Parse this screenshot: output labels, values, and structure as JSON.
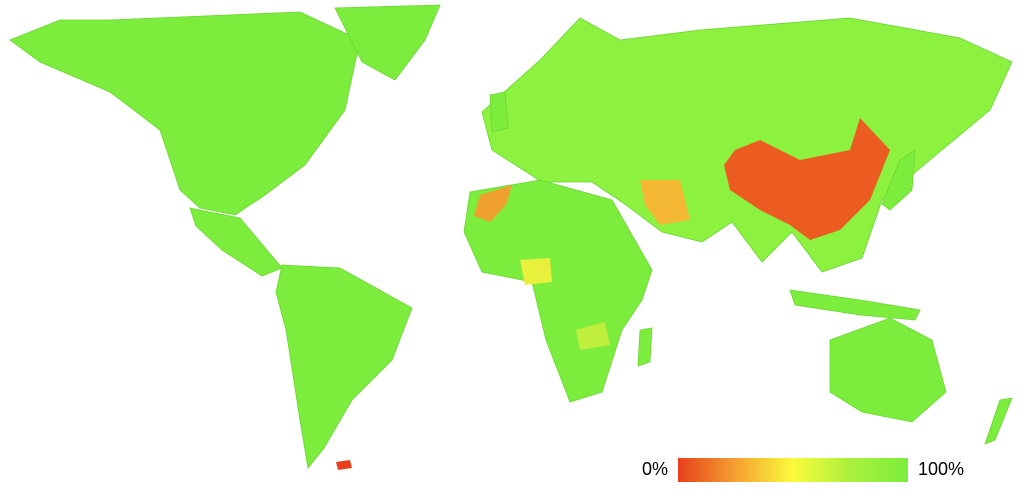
{
  "legend": {
    "ticks": [
      {
        "value": 0,
        "label": "0%"
      },
      {
        "value": 100,
        "label": "100%"
      }
    ],
    "colors": [
      "#e8401c",
      "#f4a030",
      "#fbfb3c",
      "#aaf03c",
      "#7ced3c"
    ]
  }
}
